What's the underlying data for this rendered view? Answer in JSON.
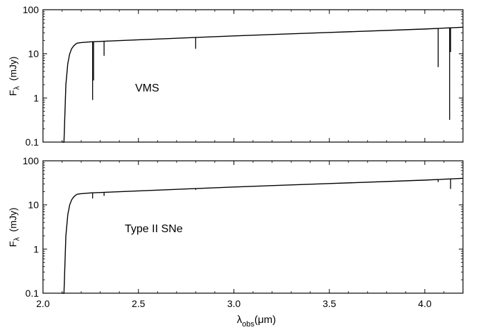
{
  "chart_data": [
    {
      "type": "line",
      "panel_label": "VMS",
      "ylabel": "F",
      "ylabel_sub": "λ",
      "ylabel_unit": "(mJy)",
      "yscale": "log",
      "ylim": [
        0.1,
        100
      ],
      "xlim": [
        2.0,
        4.2
      ],
      "yticks": [
        "0.1",
        "1",
        "10",
        "100"
      ],
      "continuum": {
        "x": [
          2.1,
          2.11,
          2.12,
          2.13,
          2.14,
          2.15,
          2.16,
          2.17,
          2.18,
          2.2,
          2.25,
          2.5,
          3.0,
          3.5,
          4.0,
          4.2
        ],
        "y": [
          0.1,
          0.1,
          2.0,
          6.0,
          10.0,
          13.0,
          15.0,
          16.5,
          17.5,
          18.0,
          18.7,
          20.8,
          25.5,
          30.5,
          36.5,
          40.0
        ]
      },
      "absorption_lines": [
        {
          "x": 2.26,
          "depth": 0.9
        },
        {
          "x": 2.265,
          "depth": 2.5
        },
        {
          "x": 2.32,
          "depth": 9.0
        },
        {
          "x": 2.8,
          "depth": 13.0
        },
        {
          "x": 4.07,
          "depth": 5.0
        },
        {
          "x": 4.13,
          "depth": 0.32
        },
        {
          "x": 4.135,
          "depth": 11.0
        }
      ]
    },
    {
      "type": "line",
      "panel_label": "Type II SNe",
      "ylabel": "F",
      "ylabel_sub": "λ",
      "ylabel_unit": "(mJy)",
      "yscale": "log",
      "ylim": [
        0.1,
        100
      ],
      "xlim": [
        2.0,
        4.2
      ],
      "yticks": [
        "0.1",
        "1",
        "10",
        "100"
      ],
      "xticks": [
        "2.0",
        "2.5",
        "3.0",
        "3.5",
        "4.0"
      ],
      "xlabel": "λ",
      "xlabel_sub": "obs",
      "xlabel_unit": "(μm)",
      "continuum": {
        "x": [
          2.1,
          2.11,
          2.12,
          2.13,
          2.14,
          2.15,
          2.16,
          2.17,
          2.18,
          2.2,
          2.25,
          2.5,
          3.0,
          3.5,
          4.0,
          4.2
        ],
        "y": [
          0.1,
          0.1,
          2.0,
          6.0,
          10.0,
          13.0,
          15.0,
          16.5,
          17.5,
          18.0,
          18.7,
          20.8,
          25.5,
          30.5,
          36.5,
          40.0
        ]
      },
      "absorption_lines": [
        {
          "x": 2.26,
          "depth": 14.0
        },
        {
          "x": 2.32,
          "depth": 16.0
        },
        {
          "x": 2.8,
          "depth": 22.0
        },
        {
          "x": 4.07,
          "depth": 33.0
        },
        {
          "x": 4.135,
          "depth": 23.0
        }
      ]
    }
  ]
}
